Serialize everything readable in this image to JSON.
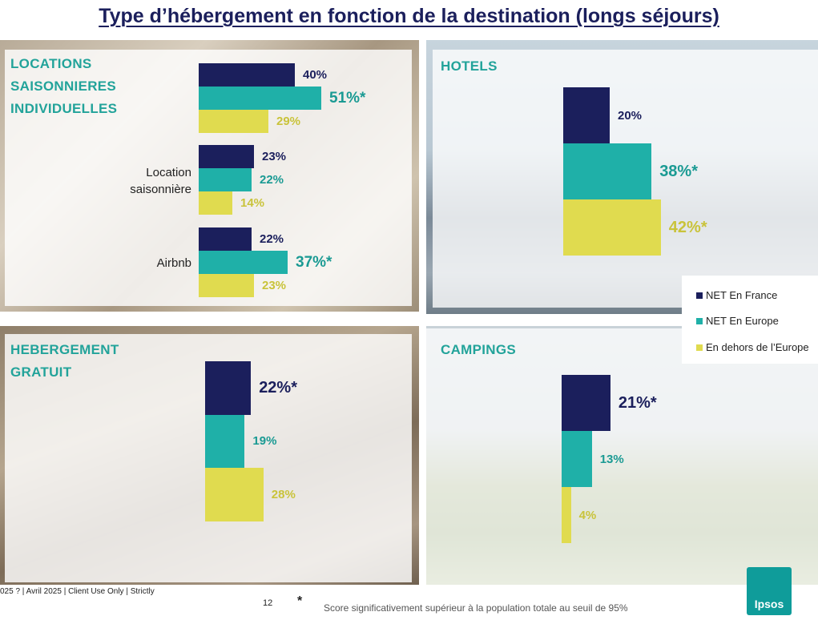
{
  "title": "Type d’hébergement en fonction de la destination (longs séjours)",
  "colors": {
    "france": "#1b1f5c",
    "europe": "#1fb0a8",
    "outside": "#e0db4f",
    "section": "#22a39a"
  },
  "legend": [
    "NET En France",
    "NET En Europe",
    "En dehors de l’Europe"
  ],
  "panels": {
    "locations": {
      "title": "LOCATIONS\nSAISONNIERES\nINDIVIDUELLES"
    },
    "hotels": {
      "title": "HOTELS"
    },
    "hebergement": {
      "title": "HEBERGEMENT\nGRATUIT"
    },
    "campings": {
      "title": "CAMPINGS"
    }
  },
  "footer": {
    "left": "025 ? | Avril 2025 | Client Use Only | Strictly",
    "page": "12",
    "star": "*",
    "note": "Score significativement  supérieur à la population totale au seuil de 95%",
    "logo": "Ipsos"
  },
  "chart_data": [
    {
      "type": "bar",
      "title": "LOCATIONS SAISONNIERES INDIVIDUELLES",
      "categories": [
        "",
        "Location\nsaisonnière",
        "Airbnb"
      ],
      "series": [
        {
          "name": "NET En France",
          "values": [
            40,
            23,
            22
          ],
          "labels": [
            "40%",
            "23%",
            "22%"
          ]
        },
        {
          "name": "NET En Europe",
          "values": [
            51,
            22,
            37
          ],
          "labels": [
            "51%*",
            "22%",
            "37%*"
          ]
        },
        {
          "name": "En dehors de l’Europe",
          "values": [
            29,
            14,
            23
          ],
          "labels": [
            "29%",
            "14%",
            "23%"
          ]
        }
      ]
    },
    {
      "type": "bar",
      "title": "HOTELS",
      "categories": [
        ""
      ],
      "series": [
        {
          "name": "NET En France",
          "values": [
            20
          ],
          "labels": [
            "20%"
          ]
        },
        {
          "name": "NET En Europe",
          "values": [
            38
          ],
          "labels": [
            "38%*"
          ]
        },
        {
          "name": "En dehors de l’Europe",
          "values": [
            42
          ],
          "labels": [
            "42%*"
          ]
        }
      ]
    },
    {
      "type": "bar",
      "title": "HEBERGEMENT GRATUIT",
      "categories": [
        ""
      ],
      "series": [
        {
          "name": "NET En France",
          "values": [
            22
          ],
          "labels": [
            "22%*"
          ]
        },
        {
          "name": "NET En Europe",
          "values": [
            19
          ],
          "labels": [
            "19%"
          ]
        },
        {
          "name": "En dehors de l’Europe",
          "values": [
            28
          ],
          "labels": [
            "28%"
          ]
        }
      ]
    },
    {
      "type": "bar",
      "title": "CAMPINGS",
      "categories": [
        ""
      ],
      "series": [
        {
          "name": "NET En France",
          "values": [
            21
          ],
          "labels": [
            "21%*"
          ]
        },
        {
          "name": "NET En Europe",
          "values": [
            13
          ],
          "labels": [
            "13%"
          ]
        },
        {
          "name": "En dehors de l’Europe",
          "values": [
            4
          ],
          "labels": [
            "4%"
          ]
        }
      ]
    }
  ]
}
